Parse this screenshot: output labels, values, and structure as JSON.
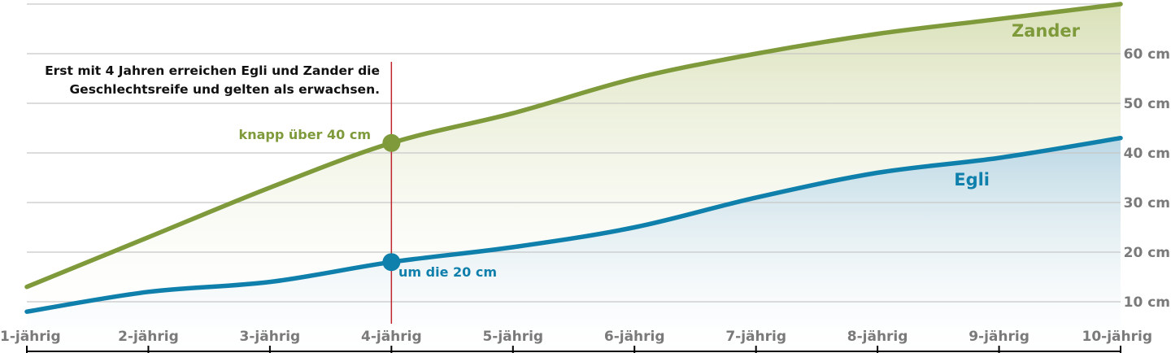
{
  "chart_data": {
    "type": "area",
    "categories": [
      "1-jährig",
      "2-jährig",
      "3-jährig",
      "4-jährig",
      "5-jährig",
      "6-jährig",
      "7-jährig",
      "8-jährig",
      "9-jährig",
      "10-jährig"
    ],
    "y_ticks": [
      "10 cm",
      "20 cm",
      "30 cm",
      "40 cm",
      "50 cm",
      "60 cm"
    ],
    "ylim": [
      0,
      70
    ],
    "grid": true,
    "series": [
      {
        "name": "Zander",
        "color": "#7e9a3b",
        "values": [
          13,
          23,
          33,
          42,
          48,
          55,
          60,
          64,
          67,
          70
        ]
      },
      {
        "name": "Egli",
        "color": "#0f7fab",
        "values": [
          8,
          12,
          14,
          18,
          21,
          25,
          31,
          36,
          39,
          43
        ]
      }
    ],
    "marker_category": "4-jährig",
    "annotations": {
      "zander_point": "knapp über 40 cm",
      "egli_point": "um die 20 cm",
      "note_line1": "Erst mit 4 Jahren erreichen Egli und Zander die",
      "note_line2": "Geschlechtsreife und gelten als erwachsen."
    },
    "marker_line_color": "#c0262e"
  }
}
